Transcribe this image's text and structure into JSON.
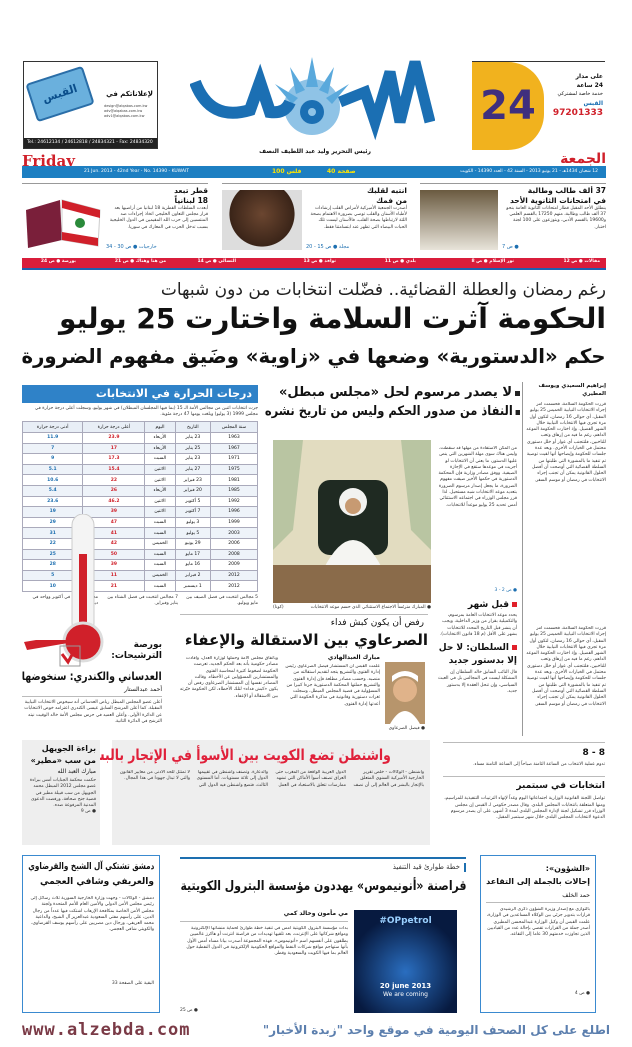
{
  "masthead": {
    "logo_text": "القبس",
    "editor": "رئيس التحرير وليد عبد اللطيف النصف",
    "day_en": "Friday",
    "day_ar": "الجمعة",
    "date_en": "21 Jun. 2013 - 42nd Year - No. 14390 - KUWAIT",
    "date_ar": "12 شعبان 1434هـ - 21 يونيو 2013 - السنة 42 - العدد 14390 - الكويت",
    "pages": "40 صفحة",
    "price": "100 فلس"
  },
  "ad_left": {
    "title": "لإعلاناتكم في",
    "button": "القبس",
    "emails": [
      "design@alqabas.com.kw",
      "adv@alqabas.com.kw",
      "adv1@alqabas.com.kw"
    ],
    "phones": "Tel.: 24612134 / 24612818 / 24834321 - Fax: 24834320"
  },
  "ad_right": {
    "number": "24",
    "line1": "على مدار",
    "line2": "24 ساعة",
    "line3": "خدمة خاصة لمشتركي",
    "brand": "القبس",
    "phone": "97201333"
  },
  "teasers": [
    {
      "title": "37 ألف طالب وطالبة",
      "title2": "في امتحانات الثانوية الأحد",
      "text": "ينطلق الأحد المقبل قطار امتحانات الثانوية العامة بنحو 37 ألف طالب وطالبة، منهم 17250 بالقسم العلمي و19600 بالقسم الأدبي، ويتوزعون على 100 لجنة اختبار.",
      "ref": "● ص 7"
    },
    {
      "title": "انتبه لقلبك",
      "title2": "من فمك",
      "text": "أصدرت الجمعية الأميركية لأمراض القلب إرشادات لأطباء الأسنان والقلب توصي بضرورة الاهتمام بصحة اللثة لارتباطها بصحة القلب، فالأسنان ليست تلك الحبات البيضاء التي تظهر عند ابتسامتنا فقط.",
      "ref": "مجلة ● ص 15 - 20"
    },
    {
      "title": "قطر تبعد",
      "title2": "18 لبنانياً",
      "text": "أبعدت السلطات القطرية 18 لبنانيا من أراضيها بعد قرار مجلس التعاون الخليجي اتخاذ إجراءات ضد المنتسبين إلى حزب الله المقيمين في الدول الخليجية بسبب تدخل الحزب في المعارك في سوريا.",
      "ref": "خارجيات ● ص 30 - 34"
    }
  ],
  "index_bar": [
    "مقالات ● ص 12",
    "نور الإسلام ● ص 8",
    "بلدي ● ص 11",
    "نوافذ ● ص 13",
    "التسالي ● ص 14",
    "من هنا وهناك ● ص 21",
    "بورصة ● ص 24"
  ],
  "lead": {
    "kicker": "رغم رمضان والعطلة القضائية.. فضّلت انتخابات من دون شبهات",
    "headline": "الحكومة آثرت السلامة واختارت 25 يوليو",
    "subhead": "حكم «الدستورية» وضعها في «زاوية» وضَيق مفهوم الضرورة",
    "bullets": [
      "لا يصدر مرسوم لحل «مجلس مبطل»",
      "النفاذ من صدور الحكم وليس من تاريخ نشره"
    ],
    "byline": "إبراهيم السعيدي ويوسف المطيري",
    "col1": "قررت الحكومة السلامة، فحسمت أمر إجراء الانتخابات النيابية الخميس 25 يوليو المقبل، أي حوالي 16 رمضان، لتكون أول مرة تجري فيها الانتخابات النيابية خلال الشهر الفضيل. وإذ اختارت الحكومة الموعد الداهم، رغم ما فيه من إرهاق وتعب للناخبين، فلتتجنب أي عوار أو خلل دستوري محتمل في الخيارات الأخرى. وبعد عدة جلسات للحكومة وإيضاحها أنها لقيت توصية تم تنفيذ ما بالمشورة التي طلبتها من السلطة القضائية التي أوضحت أن أفضل الحلول القانونية يمكن أن تجنب إجراء الانتخابات في رمضان أو موسم السفر.",
    "col2": "من المكن الاستفادة من مهلها قد سقطت، وليس هناك سوى مهلة الشهرين التي ينص عليها الدستور، ما يعني أن الانتخابات لو أجريت في موعدها ستقع في الإجازة الصيفية. ووفق مصادر وزارية فإن المحكمة الدستورية في حكمها الأخير ضيقت مفهوم الضرورة، ما يجعل إصدار مرسوم الضرورة بتعديد موعد الانتخابات شبه مستحيل. لذا قرر مجلس الوزراء في اجتماعه الاستثنائي أمس تحديد 25 يوليو موعداً للانتخابات.",
    "ref": "● ص 2 - 3",
    "caption": "● المبارك مترئساً الاجتماع الاستثنائي الذي حسم موعد الانتخابات",
    "credit": "(كونا)"
  },
  "temperature": {
    "title": "درجات الحرارة في الانتخابات",
    "intro": "جرت انتخابات اثنين من مجالس الأمة الـ 15 (بما فيها المجلسان المبطلان) في شهر يوليو، وسجلت أعلى درجة حرارة في مجلس 1999 (3 يوليو) وبلغت يومها 47 درجة مئوية.",
    "columns": [
      "سنة المجلس",
      "التاريخ",
      "اليوم",
      "أعلى درجة حرارة",
      "أدنى درجة حرارة"
    ],
    "rows": [
      [
        "1963",
        "23 يناير",
        "الأربعاء",
        "23.9",
        "11.9"
      ],
      [
        "1967",
        "25 يناير",
        "الأربعاء",
        "17",
        "7"
      ],
      [
        "1971",
        "23 يناير",
        "السبت",
        "17.3",
        "9"
      ],
      [
        "1975",
        "27 يناير",
        "الاثنين",
        "15.4",
        "5.1"
      ],
      [
        "1981",
        "23 فبراير",
        "الاثنين",
        "22",
        "10.6"
      ],
      [
        "1985",
        "20 فبراير",
        "الأربعاء",
        "26",
        "5.4"
      ],
      [
        "1992",
        "5 أكتوبر",
        "الاثنين",
        "46.2",
        "23.6"
      ],
      [
        "1996",
        "7 أكتوبر",
        "الاثنين",
        "39",
        "19"
      ],
      [
        "1999",
        "3 يوليو",
        "السبت",
        "47",
        "29"
      ],
      [
        "2003",
        "5 يوليو",
        "السبت",
        "41",
        "31"
      ],
      [
        "2006",
        "29 يونيو",
        "الخميس",
        "42",
        "22"
      ],
      [
        "2008",
        "17 مايو",
        "السبت",
        "50",
        "25"
      ],
      [
        "2009",
        "16 مايو",
        "السبت",
        "39",
        "28"
      ],
      [
        "2012",
        "2 فبراير",
        "الخميس",
        "11",
        "5"
      ],
      [
        "2012",
        "1 ديسمبر",
        "السبت",
        "21",
        "10"
      ]
    ],
    "notes": [
      "5 مجالس انتخبت في فصل الصيف بين مايو ويوليو.",
      "7 مجالس انتخبت في فصل الشتاء بين يناير وفبراير.",
      "مجلسان انتخبا في أكتوبر وواحد في ديسمبر."
    ]
  },
  "sarawi": {
    "kicker": "رفض أن يكون كبش فداء",
    "headline": "الصرعاوي بين الاستقالة والإعفاء",
    "byline": "مبارك العبدالهادي",
    "text1": "علمت القبس أن المستشار فيصل الصرعاوي رئيس إدارة الفتوى والتشريع يتجه لتقديم استقالته من منصبه. وحسب مصادر مطلعة فإن إدارة الفتوى والتشريع حملتها المحكمة الدستورية جزءا كبيرا من المسؤولية في قضية المجلس المبطل، وسجلت ثغرات دستورية وقانونية في مذكرة الحكومة التي أعدتها إدارة الفتوى.",
    "text2": "وباتفاق مجلس الأمة وحملها لوزارة العدل، وأفادت مصادر حكومية بأنه بعد الحكم الجديد، تعرضت الحكومة لضغوط كثيرة لمحاسبة الفتوى والمستشارين المسؤولين عن الأخطاء. وقالت المصادر نفسها إن المستشار الصرعاوي رفض أن يكون «كبش فداء» لتلك الأخطاء، لكن الحكومة خيّرته بين الاستقالة أو الإعفاء.",
    "caption": "● فيصل الصرعاوي"
  },
  "before_month": {
    "title": "قبل شهر",
    "text": "يحدد موعد الانتخابات العامة بمرسوم، والتكميلية بقرار من وزير الداخلية، ويجب أن ينشر قبل التاريخ المحدد للانتخابات بشهر على الأقل (م 18 قانون الانتخابات)."
  },
  "sultan": {
    "title": "السلطان: لا حل",
    "title2": "إلا بدستور جديد",
    "text": "قال النائب السابق خالد السلطان إن المشكلة ليست في المجالس بل في العبث السياسي، وإن تنحل العقدة إلا بدستور جديد."
  },
  "candidates": {
    "kicker": "بورصة الترشيحات:",
    "headline": "العدساني والكندري: سنخوضها",
    "byline": "أحمد عبدالستار",
    "text": "أعلن عضو المجلس المبطل رياض العدساني أنه سيخوض الانتخابات النيابية المقبلة. كما أعلن المرشح السابق عيسى الكندري اعتزامه خوض الانتخابات عن الدائرة الأولى. وأعلن العميد في حرس مجلس الأمة خالد الوقيت نيته الترشح في الدائرة الثانية."
  },
  "trafficking": {
    "headline": "واشنطن تضع الكويت بين الأسوأ في الإتجار بالبشر",
    "text": "واشنطن - الوكالات - خلص تقرير الخارجية الأميركية السنوي المتعلق بالإتجار بالبشر في العالم إلى أن نصف الدول العربية الواقعة من المغرب حتى العراق تصنف أسوأ الأماكن التي تشهد ممارسات تتعلق بالاستعباد في العمل والدعارة. وتصنف واشنطن في تقييمها الدول إلى ثلاثة مستويات. أما المستوى الثالث، فتضع واشنطن فيه الدول التي لا تمتثل للحد الأدنى من معايير القانون والتي لا تبذل جهودا في هذا المجال."
  },
  "juwaihel": {
    "headline": "براءة الجويهل",
    "headline2": "من سب «مطير»",
    "byline": "مبارك العبد الله",
    "text": "حكمت محكمة الجنايات أمس ببراءة عضو مجلس 2012 المبطل محمد الجويهل من سب قبيلة مطير في قضية جنح صحافة، ورفضت الدعوى المدنية المرفوعة ضده.",
    "ref": "● ص 9"
  },
  "eight": {
    "title": "8 - 8",
    "text": "تدوم عملية الانتخاب من الساعة الثامنة صباحاً إلى الساعة الثامنة مساء."
  },
  "september": {
    "title": "انتخابات في سبتمبر",
    "text": "تواصل اللجنة القانونية الوزارية اجتماعاتها اليوم وغداً لإنهاء الترتيبات التنفيذية للمراسيم، ومنها المتعلقة بانتخابات المجلس البلدي. وقال مصدر حكومي لـ القبس إن مجلس الوزراء قرر تشكيل لجنة لإدارة المجلس البلدي لمدة 3 أشهر، على أن يصدر مرسوم الدعوة لانتخابات المجلس البلدي خلال شهر سبتمبر المقبل."
  },
  "damascus": {
    "headline": "دمشق تشتكي آل الشيخ والقرضاوي",
    "headline2": "والعريفي وشافي العجمي",
    "text": "دمشق - الوكالات - وجهت وزارة الخارجية السورية ثلاث رسائل إلى رئيس مجلس الأمن الدولي والأمين العام للأمم المتحدة ولجنة مجلس الأمن الخاصة بمكافحة الإرهاب اشتكت فيها عدداً من رجال الدين، على رأسهم مفتي السعودية عبدالعزيز آل الشيخ، والداعية محمد العريفي، ورجال دين مصريين على رأسهم يوسف القرضاوي، والكويتي شافي العجمي.",
    "ref": "البقية على الصفحة 33"
  },
  "anonymous": {
    "kicker": "خطة طوارئ قيد التنفيذ",
    "headline": "قراصنة «أنونيموس» يهددون مؤسسة البترول الكويتية",
    "byline": "مي مأمون وخالد كمي",
    "text": "بدأت مؤسسة البترول الكويتية أمس في تنفيذ خطة طوارئ لحماية منشآتها الإلكترونية ومواقع شركاتها على الإنترنت، بعد تلقيها تهديدات من قراصنة انترنت أو هاكرز عالميين يطلقون على أنفسهم اسم «أنونيموس». فهذه المجموعة أصدرت بيانا مساء أمس الأول بأنها ستهاجم مواقع شركات النفط والمواقع الحكومية الإلكترونية في الدول النفطية حول العالم بما فيها الكويت والسعودية وقطر.",
    "ref": "● ص 25",
    "image_tag": "#OPpetrol",
    "image_date": "20 june 2013",
    "image_slogan": "We are coming"
  },
  "affairs": {
    "kicker": "«الشؤون»:",
    "headline": "إحالات بالجملة إلى التقاعد",
    "byline": "حمد الخلف",
    "text": "بالتوازي مع إصدار وزيرة الشؤون ذكرى الرشيدي قرارات بتدوير جزئي بين الوكلاء المساعدين في الوزارة، علمت القبس أن وكيل الوزارة عبدالمحسن المطيري أصدر جملة من القرارات تقضي بإحالة عدد من القياديين الذين تجاوزت خدمتهم 30 عاما إلى التقاعد.",
    "ref": "● ص 4"
  },
  "footer": {
    "site": "www.alzebda.com",
    "slogan": "اطلع على كل الصحف اليومية في موقع واحد \"زبدة الأخبار\""
  },
  "colors": {
    "brand_blue": "#1b6fb3",
    "accent_red": "#d0202a",
    "bar_blue": "#1d7fc2",
    "ad_yellow": "#f1b21e"
  }
}
